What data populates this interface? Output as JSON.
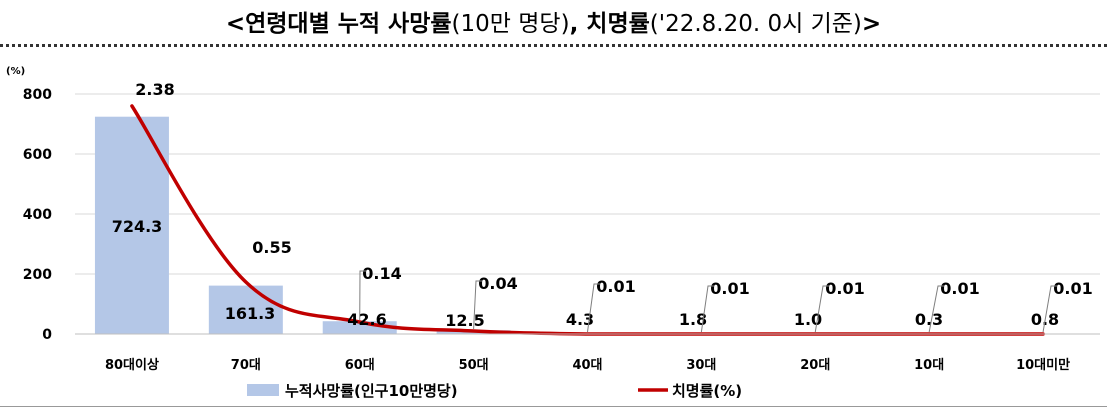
{
  "title": {
    "part1": "<연령대별 누적 사망률",
    "part2": "(10만 명당)",
    "part3": ", 치명률",
    "part4": "('22.8.20. 0시 기준)",
    "part5": ">"
  },
  "chart_data": {
    "type": "bar",
    "ylabel": "(%)",
    "ylim": [
      0,
      800
    ],
    "yticks": [
      "0",
      "200",
      "400",
      "600",
      "800"
    ],
    "categories": [
      "80대이상",
      "70대",
      "60대",
      "50대",
      "40대",
      "30대",
      "20대",
      "10대",
      "10대미만"
    ],
    "series": [
      {
        "name": "누적사망률(인구10만명당)",
        "type": "bar",
        "color": "#b4c7e7",
        "values": [
          724.3,
          161.3,
          42.6,
          12.5,
          4.3,
          1.8,
          1.0,
          0.3,
          0.8
        ],
        "labels": [
          "724.3",
          "161.3",
          "42.6",
          "12.5",
          "4.3",
          "1.8",
          "1.0",
          "0.3",
          "0.8"
        ]
      },
      {
        "name": "치명률(%)",
        "type": "line",
        "color": "#c00000",
        "values": [
          2.38,
          0.55,
          0.14,
          0.04,
          0.01,
          0.01,
          0.01,
          0.01,
          0.01
        ],
        "labels": [
          "2.38",
          "0.55",
          "0.14",
          "0.04",
          "0.01",
          "0.01",
          "0.01",
          "0.01",
          "0.01"
        ]
      }
    ],
    "grid": true,
    "legend": "bottom"
  }
}
